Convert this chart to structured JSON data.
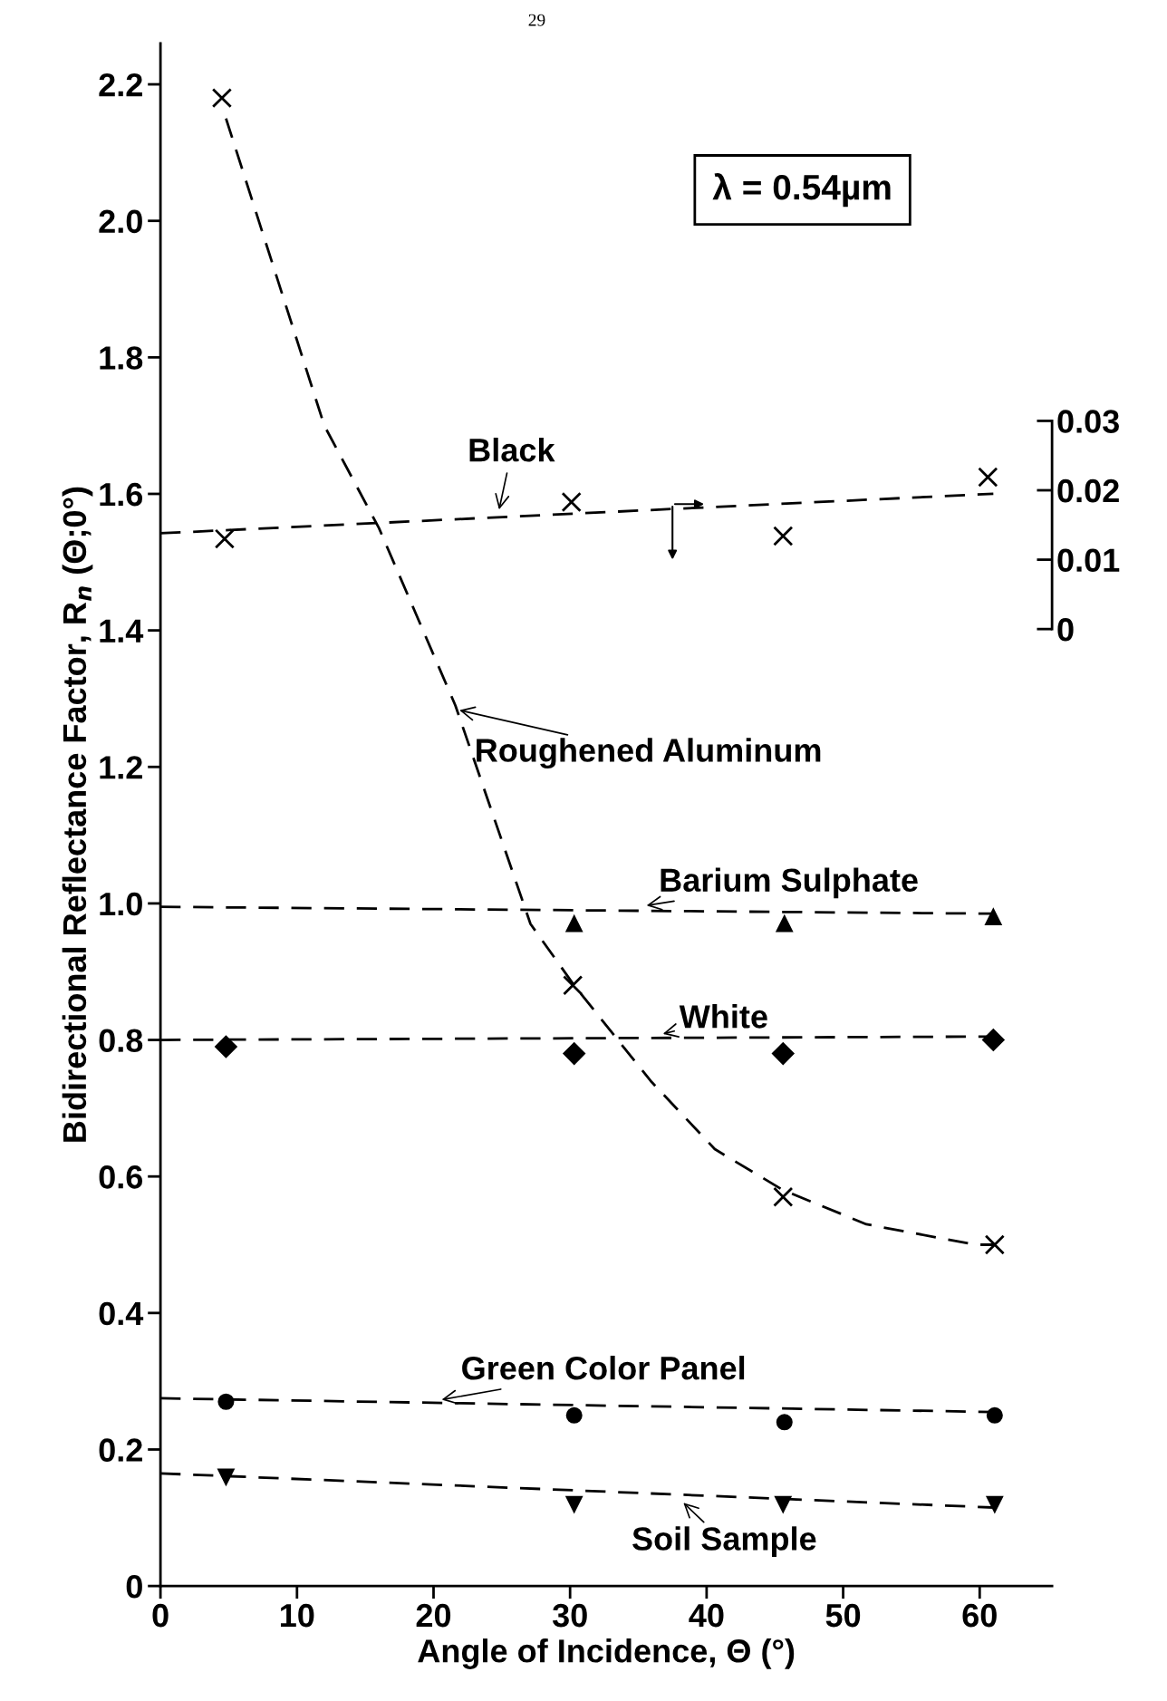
{
  "chart_data": {
    "type": "scatter",
    "xlabel": "Angle of Incidence, Θ (°)",
    "ylabel": "Bidirectional Reflectance Factor, R$_{n}$ (Θ;0°)",
    "xlim": [
      0,
      65.3
    ],
    "xticks": [
      0,
      10,
      20,
      30,
      40,
      50,
      60
    ],
    "ylim": [
      0,
      2.26
    ],
    "yticks": [
      0,
      {
        "value": 0.2,
        "label": "0.2"
      },
      {
        "value": 0.4,
        "label": "0.4"
      },
      {
        "value": 0.6,
        "label": "0.6"
      },
      {
        "value": 0.8,
        "label": "0.8"
      },
      {
        "value": 1.0,
        "label": "1.0"
      },
      {
        "value": 1.2,
        "label": "1.2"
      },
      {
        "value": 1.4,
        "label": "1.4"
      },
      {
        "value": 1.6,
        "label": "1.6"
      },
      {
        "value": 1.8,
        "label": "1.8"
      },
      {
        "value": 2.0,
        "label": "2.0"
      },
      {
        "value": 2.2,
        "label": "2.2"
      }
    ],
    "y2lim": [
      -0.1379,
      0.0844
    ],
    "y2ticks": [
      0,
      0.01,
      0.02,
      0.03
    ],
    "grid": false,
    "series": [
      {
        "marker": "cross",
        "color": "#000000",
        "x": [
          4.5,
          30.2,
          45.6,
          61.1
        ],
        "values": [
          2.18,
          0.88,
          0.57,
          0.5
        ]
      },
      {
        "type": "line",
        "line_style": "dashed",
        "color": "#000000",
        "x": [
          4.8,
          12,
          16,
          21.6,
          27.1,
          30.3,
          35.9,
          40.6,
          45.6,
          51.7,
          59.7,
          61
        ],
        "values": [
          2.15,
          1.7,
          1.55,
          1.29,
          0.97,
          0.88,
          0.74,
          0.64,
          0.58,
          0.53,
          0.5,
          0.5
        ]
      },
      {
        "type": "scatter",
        "marker": "cross",
        "color": "#000000",
        "axis": "y2",
        "x": [
          4.7,
          30.1,
          45.6,
          60.6
        ],
        "values": [
          0.013,
          0.0183,
          0.0134,
          0.0219
        ]
      },
      {
        "type": "line",
        "line_style": "dashed",
        "color": "#000000",
        "axis": "y2",
        "x": [
          0,
          61
        ],
        "values": [
          0.0138,
          0.0195
        ]
      },
      {
        "type": "scatter",
        "marker": "triangle",
        "color": "#000000",
        "x": [
          30.3,
          45.7,
          61
        ],
        "values": [
          0.97,
          0.97,
          0.98
        ]
      },
      {
        "type": "line",
        "line_style": "dashed",
        "color": "#000000",
        "x": [
          0,
          61
        ],
        "values": [
          0.995,
          0.985
        ]
      },
      {
        "type": "scatter",
        "marker": "diamond",
        "color": "#000000",
        "x": [
          4.8,
          30.3,
          45.6,
          61
        ],
        "values": [
          0.79,
          0.78,
          0.78,
          0.8
        ]
      },
      {
        "type": "line",
        "line_style": "dashed",
        "color": "#000000",
        "x": [
          0,
          61
        ],
        "values": [
          0.8,
          0.805
        ]
      },
      {
        "type": "scatter",
        "marker": "circle",
        "color": "#000000",
        "x": [
          4.8,
          30.3,
          45.7,
          61.1
        ],
        "values": [
          0.27,
          0.25,
          0.24,
          0.25
        ]
      },
      {
        "type": "line",
        "line_style": "dashed",
        "color": "#000000",
        "x": [
          0,
          61
        ],
        "values": [
          0.275,
          0.255
        ]
      },
      {
        "type": "scatter",
        "marker": "triangle_down",
        "color": "#000000",
        "x": [
          4.8,
          30.3,
          45.6,
          61.1
        ],
        "values": [
          0.16,
          0.12,
          0.12,
          0.12
        ]
      },
      {
        "type": "line",
        "line_style": "dashed",
        "color": "#000000",
        "x": [
          0,
          61
        ],
        "values": [
          0.165,
          0.115
        ]
      }
    ],
    "annotations": [
      "29",
      "λ = 0.54µm",
      "Black",
      "Roughened Aluminum",
      "Barium Sulphate",
      "White",
      "Green Color Panel",
      "Soil Sample"
    ]
  }
}
